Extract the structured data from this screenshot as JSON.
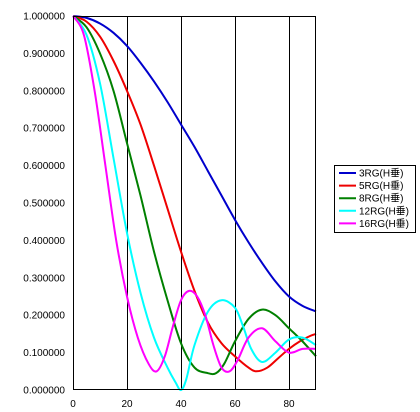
{
  "chart_data": {
    "type": "line",
    "title": "",
    "xlabel": "",
    "ylabel": "",
    "xlim": [
      0,
      90
    ],
    "ylim": [
      0,
      1
    ],
    "x_ticks": [
      "0",
      "20",
      "40",
      "60",
      "80"
    ],
    "x_tick_values": [
      0,
      20,
      40,
      60,
      80
    ],
    "y_ticks": [
      "0.000000",
      "0.100000",
      "0.200000",
      "0.300000",
      "0.400000",
      "0.500000",
      "0.600000",
      "0.700000",
      "0.800000",
      "0.900000",
      "1.000000"
    ],
    "y_tick_values": [
      0,
      0.1,
      0.2,
      0.3,
      0.4,
      0.5,
      0.6,
      0.7,
      0.8,
      0.9,
      1.0
    ],
    "grid": "vertical",
    "legend_position": "right",
    "series": [
      {
        "name": "3RG(H垂)",
        "color": "#0000cc",
        "x": [
          0,
          5,
          10,
          15,
          20,
          25,
          30,
          35,
          40,
          45,
          50,
          55,
          60,
          65,
          70,
          75,
          80,
          85,
          90
        ],
        "values": [
          1.0,
          0.995,
          0.98,
          0.955,
          0.92,
          0.875,
          0.825,
          0.77,
          0.71,
          0.65,
          0.585,
          0.52,
          0.455,
          0.395,
          0.34,
          0.29,
          0.25,
          0.225,
          0.21
        ]
      },
      {
        "name": "5RG(H垂)",
        "color": "#ee0000",
        "x": [
          0,
          5,
          10,
          15,
          20,
          25,
          30,
          35,
          40,
          45,
          50,
          55,
          60,
          65,
          68,
          72,
          76,
          80,
          84,
          88,
          90
        ],
        "values": [
          1.0,
          0.985,
          0.945,
          0.88,
          0.8,
          0.71,
          0.6,
          0.485,
          0.37,
          0.265,
          0.18,
          0.125,
          0.09,
          0.06,
          0.05,
          0.06,
          0.085,
          0.11,
          0.13,
          0.145,
          0.15
        ]
      },
      {
        "name": "8RG(H垂)",
        "color": "#008000",
        "x": [
          0,
          5,
          10,
          15,
          20,
          25,
          30,
          35,
          40,
          45,
          50,
          53,
          56,
          60,
          65,
          70,
          75,
          80,
          85,
          90
        ],
        "values": [
          1.0,
          0.97,
          0.9,
          0.8,
          0.66,
          0.52,
          0.37,
          0.24,
          0.125,
          0.06,
          0.045,
          0.045,
          0.07,
          0.13,
          0.19,
          0.215,
          0.2,
          0.165,
          0.13,
          0.09
        ]
      },
      {
        "name": "12RG(H垂)",
        "color": "#00ffff",
        "x": [
          0,
          5,
          10,
          15,
          20,
          25,
          30,
          35,
          38,
          40,
          42,
          45,
          50,
          55,
          60,
          63,
          66,
          70,
          75,
          80,
          85,
          90
        ],
        "values": [
          1.0,
          0.95,
          0.82,
          0.62,
          0.42,
          0.26,
          0.14,
          0.06,
          0.02,
          0.0,
          0.03,
          0.12,
          0.21,
          0.24,
          0.22,
          0.17,
          0.11,
          0.075,
          0.1,
          0.135,
          0.14,
          0.12
        ]
      },
      {
        "name": "16RG(H垂)",
        "color": "#ff00ff",
        "x": [
          0,
          4,
          8,
          12,
          16,
          20,
          24,
          28,
          31,
          34,
          37,
          40,
          43,
          46,
          49,
          52,
          55,
          58,
          61,
          65,
          70,
          75,
          80,
          85,
          90
        ],
        "values": [
          1.0,
          0.95,
          0.8,
          0.6,
          0.4,
          0.25,
          0.14,
          0.07,
          0.05,
          0.09,
          0.17,
          0.24,
          0.265,
          0.25,
          0.2,
          0.12,
          0.06,
          0.05,
          0.08,
          0.14,
          0.165,
          0.13,
          0.1,
          0.11,
          0.11
        ]
      }
    ]
  }
}
